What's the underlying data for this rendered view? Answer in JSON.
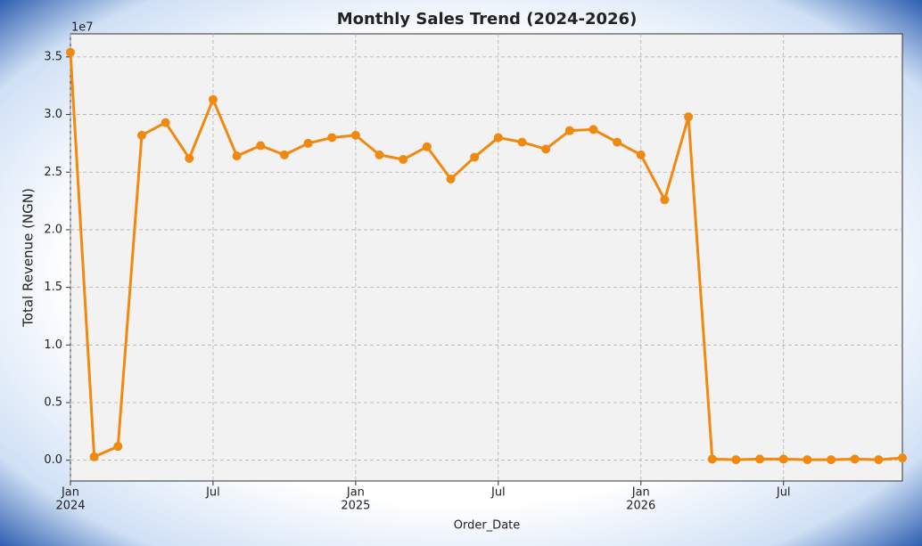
{
  "chart_data": {
    "type": "line",
    "title": "Monthly Sales Trend (2024-2026)",
    "x_label": "Order_Date",
    "y_label": "Total Revenue (NGN)",
    "offset_label": "1e7",
    "x": [
      "2024-01",
      "2024-02",
      "2024-03",
      "2024-04",
      "2024-05",
      "2024-06",
      "2024-07",
      "2024-08",
      "2024-09",
      "2024-10",
      "2024-11",
      "2024-12",
      "2025-01",
      "2025-02",
      "2025-03",
      "2025-04",
      "2025-05",
      "2025-06",
      "2025-07",
      "2025-08",
      "2025-09",
      "2025-10",
      "2025-11",
      "2025-12",
      "2026-01",
      "2026-02",
      "2026-03",
      "2026-04",
      "2026-05",
      "2026-06",
      "2026-07",
      "2026-08",
      "2026-09",
      "2026-10",
      "2026-11",
      "2026-12"
    ],
    "series": [
      {
        "name": "Total Revenue",
        "color": "#f0890f",
        "values": [
          3.54,
          0.03,
          0.12,
          2.82,
          2.93,
          2.62,
          3.13,
          2.64,
          2.73,
          2.65,
          2.75,
          2.8,
          2.82,
          2.65,
          2.61,
          2.72,
          2.44,
          2.63,
          2.8,
          2.76,
          2.7,
          2.86,
          2.87,
          2.76,
          2.65,
          2.26,
          2.98,
          0.01,
          0.005,
          0.01,
          0.01,
          0.005,
          0.005,
          0.01,
          0.005,
          0.02
        ]
      }
    ],
    "xlim": [
      "2024-01",
      "2026-12"
    ],
    "xticks": [
      {
        "value": "2024-01",
        "label": [
          "Jan",
          "2024"
        ]
      },
      {
        "value": "2024-07",
        "label": [
          "Jul"
        ]
      },
      {
        "value": "2025-01",
        "label": [
          "Jan",
          "2025"
        ]
      },
      {
        "value": "2025-07",
        "label": [
          "Jul"
        ]
      },
      {
        "value": "2026-01",
        "label": [
          "Jan",
          "2026"
        ]
      },
      {
        "value": "2026-07",
        "label": [
          "Jul"
        ]
      }
    ],
    "ylim": [
      -0.18,
      3.7
    ],
    "yticks": [
      {
        "value": 0,
        "label": "0.0"
      },
      0.5,
      {
        "value": 1,
        "label": "1.0"
      },
      1.5,
      {
        "value": 2,
        "label": "2.0"
      },
      2.5,
      {
        "value": 3,
        "label": "3.0"
      },
      3.5
    ],
    "grid": true
  }
}
